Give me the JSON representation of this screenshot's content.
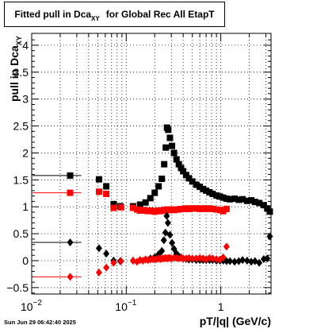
{
  "title": {
    "main": "Fitted pull in Dca",
    "sub": "XY",
    "tail": "for Global Rec All EtapT"
  },
  "datestamp": "Sun Jun 29 06:42:40 2025",
  "chart_data": {
    "type": "scatter",
    "title": "Fitted pull in Dca_XY for Global Rec All EtapT",
    "xlabel": "pT/|q| (GeV/c)",
    "ylabel": "pull in Dca_XY",
    "xscale": "log",
    "xlim": [
      0.01,
      3.4
    ],
    "ylim": [
      -0.62,
      4.22
    ],
    "grid": true,
    "xticks": [
      {
        "v": 0.01,
        "base": "10",
        "exp": "−2"
      },
      {
        "v": 0.1,
        "base": "10",
        "exp": "−1"
      },
      {
        "v": 1,
        "base": "1",
        "exp": ""
      }
    ],
    "yticks": [
      "−0.5",
      "0",
      "0.5",
      "1",
      "1.5",
      "2",
      "2.5",
      "3",
      "3.5",
      "4"
    ],
    "ytick_values": [
      -0.5,
      0,
      0.5,
      1,
      1.5,
      2,
      2.5,
      3,
      3.5,
      4
    ],
    "series": [
      {
        "color": "#000000",
        "marker": "square",
        "points": [
          [
            0.0255,
            1.58
          ],
          [
            0.0515,
            1.51
          ],
          [
            0.0615,
            1.38
          ],
          [
            0.0735,
            1.05
          ],
          [
            0.0865,
            1.01
          ],
          [
            0.118,
            1.01
          ],
          [
            0.14,
            1.04
          ],
          [
            0.16,
            1.08
          ],
          [
            0.18,
            1.16
          ],
          [
            0.2,
            1.26
          ],
          [
            0.22,
            1.38
          ],
          [
            0.238,
            1.52
          ],
          [
            0.252,
            1.79
          ],
          [
            0.262,
            2.1
          ],
          [
            0.27,
            2.47
          ],
          [
            0.278,
            2.43
          ],
          [
            0.29,
            2.28
          ],
          [
            0.305,
            2.13
          ],
          [
            0.32,
            2.0
          ],
          [
            0.34,
            1.88
          ],
          [
            0.36,
            1.79
          ],
          [
            0.38,
            1.72
          ],
          [
            0.4,
            1.66
          ],
          [
            0.43,
            1.59
          ],
          [
            0.46,
            1.53
          ],
          [
            0.5,
            1.47
          ],
          [
            0.55,
            1.41
          ],
          [
            0.6,
            1.37
          ],
          [
            0.65,
            1.33
          ],
          [
            0.7,
            1.3
          ],
          [
            0.76,
            1.27
          ],
          [
            0.82,
            1.24
          ],
          [
            0.9,
            1.21
          ],
          [
            0.98,
            1.19
          ],
          [
            1.06,
            1.17
          ],
          [
            1.15,
            1.15
          ],
          [
            1.25,
            1.14
          ],
          [
            1.4,
            1.15
          ],
          [
            1.55,
            1.13
          ],
          [
            1.7,
            1.14
          ],
          [
            1.9,
            1.11
          ],
          [
            2.1,
            1.12
          ],
          [
            2.3,
            1.09
          ],
          [
            2.55,
            1.07
          ],
          [
            2.85,
            1.03
          ],
          [
            3.1,
            0.97
          ],
          [
            3.3,
            0.91
          ]
        ]
      },
      {
        "color": "#ff0000",
        "marker": "square",
        "points": [
          [
            0.0255,
            1.26
          ],
          [
            0.0515,
            1.28
          ],
          [
            0.0615,
            1.24
          ],
          [
            0.0735,
            0.98
          ],
          [
            0.088,
            0.99
          ],
          [
            0.118,
            0.98
          ],
          [
            0.13,
            0.95
          ],
          [
            0.14,
            0.93
          ],
          [
            0.15,
            0.94
          ],
          [
            0.16,
            0.93
          ],
          [
            0.17,
            0.92
          ],
          [
            0.18,
            0.93
          ],
          [
            0.19,
            0.92
          ],
          [
            0.2,
            0.91
          ],
          [
            0.21,
            0.92
          ],
          [
            0.22,
            0.93
          ],
          [
            0.23,
            0.92
          ],
          [
            0.24,
            0.93
          ],
          [
            0.25,
            0.94
          ],
          [
            0.26,
            0.93
          ],
          [
            0.27,
            0.95
          ],
          [
            0.28,
            0.94
          ],
          [
            0.29,
            0.94
          ],
          [
            0.3,
            0.95
          ],
          [
            0.32,
            0.94
          ],
          [
            0.34,
            0.95
          ],
          [
            0.36,
            0.95
          ],
          [
            0.38,
            0.96
          ],
          [
            0.4,
            0.96
          ],
          [
            0.43,
            0.97
          ],
          [
            0.46,
            0.96
          ],
          [
            0.5,
            0.97
          ],
          [
            0.55,
            0.97
          ],
          [
            0.6,
            0.96
          ],
          [
            0.65,
            0.97
          ],
          [
            0.7,
            0.96
          ],
          [
            0.76,
            0.97
          ],
          [
            0.82,
            0.96
          ],
          [
            0.9,
            0.95
          ],
          [
            0.98,
            0.94
          ],
          [
            1.06,
            0.92
          ],
          [
            1.15,
            0.96
          ]
        ]
      },
      {
        "color": "#000000",
        "marker": "diamond",
        "points": [
          [
            0.0255,
            0.34
          ],
          [
            0.0515,
            0.23
          ],
          [
            0.0615,
            0.13
          ],
          [
            0.0735,
            0.0
          ],
          [
            0.0865,
            -0.01
          ],
          [
            0.118,
            0.0
          ],
          [
            0.14,
            0.01
          ],
          [
            0.16,
            0.02
          ],
          [
            0.18,
            0.04
          ],
          [
            0.2,
            0.06
          ],
          [
            0.22,
            0.12
          ],
          [
            0.238,
            0.18
          ],
          [
            0.25,
            0.38
          ],
          [
            0.26,
            0.52
          ],
          [
            0.268,
            0.83
          ],
          [
            0.276,
            0.7
          ],
          [
            0.29,
            0.48
          ],
          [
            0.305,
            0.33
          ],
          [
            0.32,
            0.22
          ],
          [
            0.34,
            0.13
          ],
          [
            0.36,
            0.08
          ],
          [
            0.38,
            0.06
          ],
          [
            0.4,
            0.04
          ],
          [
            0.43,
            0.03
          ],
          [
            0.46,
            0.02
          ],
          [
            0.5,
            0.02
          ],
          [
            0.55,
            0.01
          ],
          [
            0.6,
            0.01
          ],
          [
            0.65,
            0.01
          ],
          [
            0.7,
            0.01
          ],
          [
            0.76,
            0.01
          ],
          [
            0.82,
            0.01
          ],
          [
            0.9,
            0.0
          ],
          [
            0.98,
            0.0
          ],
          [
            1.06,
            0.0
          ],
          [
            1.15,
            -0.01
          ],
          [
            1.25,
            -0.01
          ],
          [
            1.4,
            -0.02
          ],
          [
            1.55,
            -0.01
          ],
          [
            1.7,
            0.01
          ],
          [
            1.9,
            0.0
          ],
          [
            2.1,
            -0.02
          ],
          [
            2.3,
            -0.01
          ],
          [
            2.55,
            -0.04
          ],
          [
            2.85,
            0.03
          ],
          [
            3.1,
            0.04
          ],
          [
            3.3,
            0.45
          ]
        ]
      },
      {
        "color": "#ff0000",
        "marker": "diamond",
        "points": [
          [
            0.0255,
            -0.3
          ],
          [
            0.0515,
            -0.22
          ],
          [
            0.0615,
            -0.13
          ],
          [
            0.0735,
            -0.04
          ],
          [
            0.088,
            -0.01
          ],
          [
            0.118,
            0.0
          ],
          [
            0.13,
            -0.02
          ],
          [
            0.14,
            0.01
          ],
          [
            0.15,
            0.0
          ],
          [
            0.16,
            0.02
          ],
          [
            0.17,
            0.01
          ],
          [
            0.18,
            0.02
          ],
          [
            0.19,
            0.03
          ],
          [
            0.2,
            0.02
          ],
          [
            0.21,
            0.03
          ],
          [
            0.22,
            0.04
          ],
          [
            0.23,
            0.03
          ],
          [
            0.24,
            0.04
          ],
          [
            0.25,
            0.04
          ],
          [
            0.26,
            0.05
          ],
          [
            0.27,
            0.04
          ],
          [
            0.28,
            0.05
          ],
          [
            0.29,
            0.05
          ],
          [
            0.3,
            0.04
          ],
          [
            0.32,
            0.05
          ],
          [
            0.34,
            0.05
          ],
          [
            0.36,
            0.04
          ],
          [
            0.38,
            0.05
          ],
          [
            0.4,
            0.04
          ],
          [
            0.43,
            0.04
          ],
          [
            0.46,
            0.05
          ],
          [
            0.5,
            0.04
          ],
          [
            0.55,
            0.04
          ],
          [
            0.6,
            0.05
          ],
          [
            0.65,
            0.04
          ],
          [
            0.7,
            0.03
          ],
          [
            0.76,
            0.05
          ],
          [
            0.82,
            0.04
          ],
          [
            0.9,
            0.03
          ],
          [
            0.98,
            0.02
          ],
          [
            1.06,
            0.06
          ],
          [
            1.15,
            0.26
          ]
        ]
      }
    ]
  }
}
